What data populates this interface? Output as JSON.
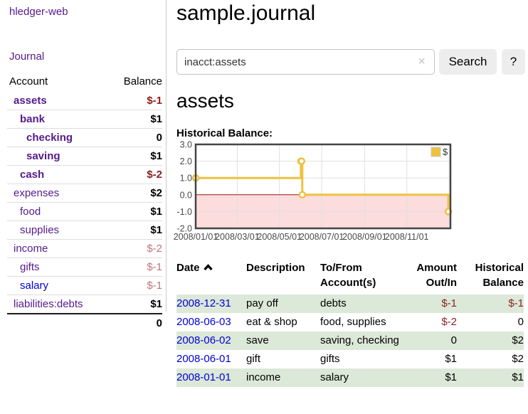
{
  "app": {
    "title": "hledger-web",
    "nav_journal": "Journal"
  },
  "sidebar": {
    "header": {
      "account": "Account",
      "balance": "Balance"
    },
    "accounts": [
      {
        "name": "assets",
        "balance": "$-1"
      },
      {
        "name": "bank",
        "balance": "$1"
      },
      {
        "name": "checking",
        "balance": "0"
      },
      {
        "name": "saving",
        "balance": "$1"
      },
      {
        "name": "cash",
        "balance": "$-2"
      },
      {
        "name": "expenses",
        "balance": "$2"
      },
      {
        "name": "food",
        "balance": "$1"
      },
      {
        "name": "supplies",
        "balance": "$1"
      },
      {
        "name": "income",
        "balance": "$-2"
      },
      {
        "name": "gifts",
        "balance": "$-1"
      },
      {
        "name": "salary",
        "balance": "$-1"
      },
      {
        "name": "liabilities:debts",
        "balance": "$1"
      }
    ],
    "total": "0"
  },
  "header": {
    "title": "sample.journal"
  },
  "search": {
    "value": "inacct:assets",
    "clear_icon": "×",
    "button": "Search",
    "help_button": "?"
  },
  "account_page": {
    "heading": "assets",
    "chart_label": "Historical Balance:"
  },
  "chart_data": {
    "type": "line",
    "title": "Historical Balance",
    "legend": {
      "label": "$",
      "position": "top-right"
    },
    "series": [
      {
        "name": "$",
        "color": "#edc240",
        "steps": true,
        "points": [
          [
            "2008/01/01",
            1.0
          ],
          [
            "2008/06/01",
            2.0
          ],
          [
            "2008/06/02",
            2.0
          ],
          [
            "2008/06/03",
            0.0
          ],
          [
            "2008/12/31",
            -1.0
          ]
        ]
      }
    ],
    "x_range": [
      "2008/01/01",
      "2009/01/03"
    ],
    "ylim": [
      -2.0,
      3.0
    ],
    "y_ticks": [
      3.0,
      2.0,
      1.0,
      0.0,
      -1.0,
      -2.0
    ],
    "x_ticks": [
      {
        "date": "2008/01/01",
        "label": "2008/01/01"
      },
      {
        "date": "2008/03/01",
        "label": "2008/03/01"
      },
      {
        "date": "2008/05/01",
        "label": "2008/05/01"
      },
      {
        "date": "2008/07/01",
        "label": "2008/07/01"
      },
      {
        "date": "2008/09/01",
        "label": "2008/09/01"
      },
      {
        "date": "2008/11/01",
        "label": "2008/11/01"
      },
      {
        "date": "2009/01/01",
        "label": ""
      }
    ],
    "grid": true,
    "negative_region_color": "#fcdcdc",
    "zero_line_color": "#991414"
  },
  "register": {
    "headers": {
      "date": "Date",
      "description": "Description",
      "account": "To/From Account(s)",
      "amount": "Amount Out/In",
      "balance": "Historical Balance"
    },
    "rows": [
      {
        "date": "2008-12-31",
        "description": "pay off",
        "accounts": "debts",
        "amount": "$-1",
        "balance": "$-1"
      },
      {
        "date": "2008-06-03",
        "description": "eat & shop",
        "accounts": "food, supplies",
        "amount": "$-2",
        "balance": "0"
      },
      {
        "date": "2008-06-02",
        "description": "save",
        "accounts": "saving, checking",
        "amount": "0",
        "balance": "$2"
      },
      {
        "date": "2008-06-01",
        "description": "gift",
        "accounts": "gifts",
        "amount": "$1",
        "balance": "$2"
      },
      {
        "date": "2008-01-01",
        "description": "income",
        "accounts": "salary",
        "amount": "$1",
        "balance": "$1"
      }
    ]
  }
}
